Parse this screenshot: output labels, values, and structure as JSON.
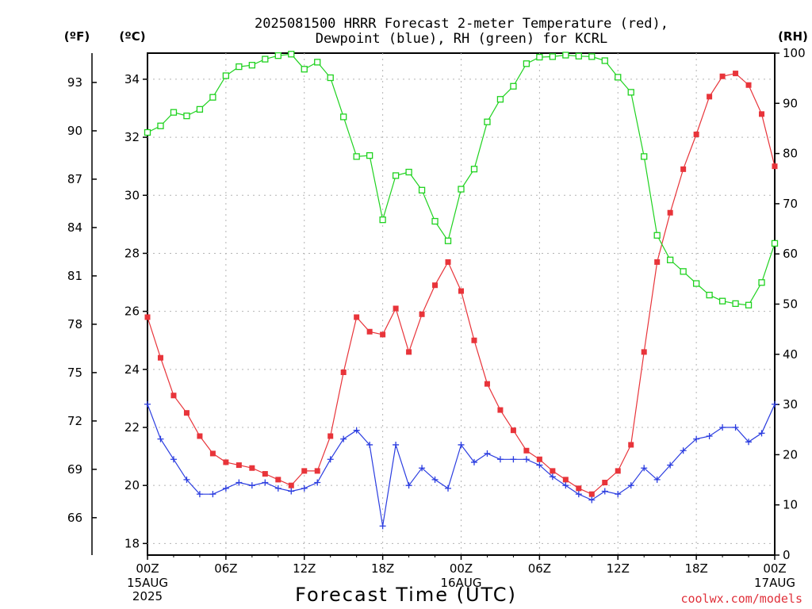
{
  "chart_data": {
    "type": "line",
    "title_line1": "2025081500 HRRR Forecast 2-meter Temperature (red),",
    "title_line2": "Dewpoint (blue), RH (green) for KCRL",
    "xlabel": "Forecast Time (UTC)",
    "credit": "coolwx.com/models",
    "units": {
      "fahrenheit": "(ºF)",
      "celsius": "(ºC)",
      "rh": "(RH)"
    },
    "x_hours": [
      0,
      1,
      2,
      3,
      4,
      5,
      6,
      7,
      8,
      9,
      10,
      11,
      12,
      13,
      14,
      15,
      16,
      17,
      18,
      19,
      20,
      21,
      22,
      23,
      24,
      25,
      26,
      27,
      28,
      29,
      30,
      31,
      32,
      33,
      34,
      35,
      36,
      37,
      38,
      39,
      40,
      41,
      42,
      43,
      44,
      45,
      46,
      47,
      48
    ],
    "xlim": [
      0,
      48
    ],
    "x_ticks": [
      {
        "hour": 0,
        "label": "00Z",
        "sub1": "15AUG",
        "sub2": "2025"
      },
      {
        "hour": 6,
        "label": "06Z",
        "sub1": "",
        "sub2": ""
      },
      {
        "hour": 12,
        "label": "12Z",
        "sub1": "",
        "sub2": ""
      },
      {
        "hour": 18,
        "label": "18Z",
        "sub1": "",
        "sub2": ""
      },
      {
        "hour": 24,
        "label": "00Z",
        "sub1": "16AUG",
        "sub2": ""
      },
      {
        "hour": 30,
        "label": "06Z",
        "sub1": "",
        "sub2": ""
      },
      {
        "hour": 36,
        "label": "12Z",
        "sub1": "",
        "sub2": ""
      },
      {
        "hour": 42,
        "label": "18Z",
        "sub1": "",
        "sub2": ""
      },
      {
        "hour": 48,
        "label": "00Z",
        "sub1": "17AUG",
        "sub2": ""
      }
    ],
    "ylim_celsius": [
      17.6,
      34.9
    ],
    "y_ticks_celsius": [
      18,
      20,
      22,
      24,
      26,
      28,
      30,
      32,
      34
    ],
    "y_ticks_fahrenheit": [
      66,
      69,
      72,
      75,
      78,
      81,
      84,
      87,
      90,
      93
    ],
    "ylim_rh": [
      0,
      100
    ],
    "y_ticks_rh": [
      0,
      10,
      20,
      30,
      40,
      50,
      60,
      70,
      80,
      90,
      100
    ],
    "grid": true,
    "series": [
      {
        "name": "Temperature (red)",
        "axis": "celsius",
        "color": "#e8343a",
        "marker": "filled-square",
        "values": [
          25.8,
          24.4,
          23.1,
          22.5,
          21.7,
          21.1,
          20.8,
          20.7,
          20.6,
          20.4,
          20.2,
          20.0,
          20.5,
          20.5,
          21.7,
          23.9,
          25.8,
          25.3,
          25.2,
          26.1,
          24.6,
          25.9,
          26.9,
          27.7,
          26.7,
          25.0,
          23.5,
          22.6,
          21.9,
          21.2,
          20.9,
          20.5,
          20.2,
          19.9,
          19.7,
          20.1,
          20.5,
          21.4,
          24.6,
          27.7,
          29.4,
          30.9,
          32.1,
          33.4,
          34.1,
          34.2,
          33.8,
          32.8,
          31.0
        ]
      },
      {
        "name": "Dewpoint (blue)",
        "axis": "celsius",
        "color": "#2b3de0",
        "marker": "plus",
        "values": [
          22.8,
          21.6,
          20.9,
          20.2,
          19.7,
          19.7,
          19.9,
          20.1,
          20.0,
          20.1,
          19.9,
          19.8,
          19.9,
          20.1,
          20.9,
          21.6,
          21.9,
          21.4,
          18.6,
          21.4,
          20.0,
          20.6,
          20.2,
          19.9,
          21.4,
          20.8,
          21.1,
          20.9,
          20.9,
          20.9,
          20.7,
          20.3,
          20.0,
          19.7,
          19.5,
          19.8,
          19.7,
          20.0,
          20.6,
          20.2,
          20.7,
          21.2,
          21.6,
          21.7,
          22.0,
          22.0,
          21.5,
          21.8,
          22.8
        ]
      },
      {
        "name": "RH (green)",
        "axis": "rh",
        "color": "#1fd21f",
        "marker": "open-square",
        "values": [
          84.2,
          85.5,
          88.2,
          87.5,
          88.8,
          91.2,
          95.5,
          97.3,
          97.6,
          98.8,
          99.5,
          99.8,
          96.8,
          98.2,
          95.1,
          87.3,
          79.4,
          79.6,
          66.8,
          75.6,
          76.3,
          72.7,
          66.5,
          62.6,
          72.9,
          76.9,
          86.3,
          90.8,
          93.4,
          97.9,
          99.2,
          99.3,
          99.6,
          99.4,
          99.3,
          98.5,
          95.2,
          92.2,
          79.4,
          63.7,
          58.8,
          56.5,
          54.1,
          51.8,
          50.6,
          50.1,
          49.8,
          54.3,
          62.1
        ]
      }
    ]
  }
}
